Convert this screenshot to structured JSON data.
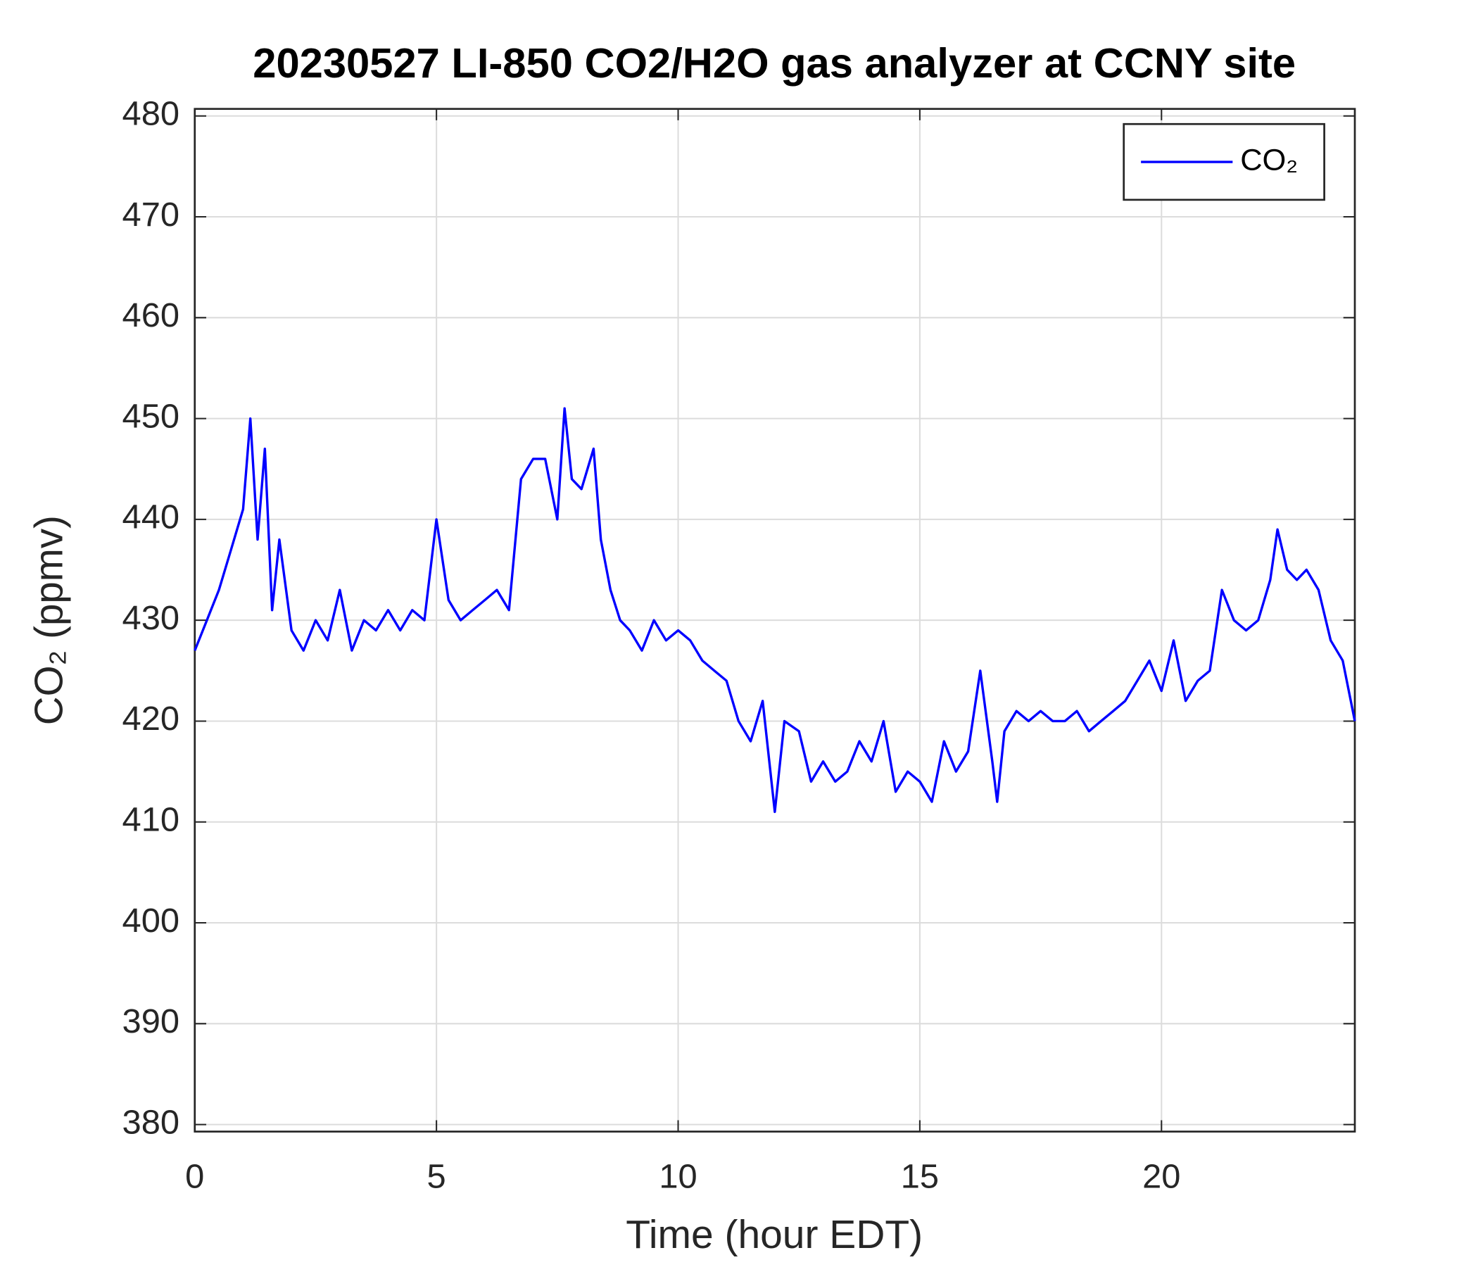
{
  "chart_data": {
    "type": "line",
    "title": "20230527 LI-850 CO2/H2O gas analyzer at CCNY site",
    "x_label": "Time (hour EDT)",
    "y_label": "CO₂ (ppmv)",
    "xlim": [
      0,
      24
    ],
    "xticks": [
      0,
      5,
      10,
      15,
      20
    ],
    "ylim": [
      379.3,
      480.7
    ],
    "yticks": [
      380,
      390,
      400,
      410,
      420,
      430,
      440,
      450,
      460,
      470,
      480
    ],
    "grid": true,
    "legend": "upper right",
    "x": [
      0,
      0.25,
      0.5,
      0.75,
      1.0,
      1.15,
      1.3,
      1.45,
      1.6,
      1.75,
      2.0,
      2.25,
      2.5,
      2.75,
      3.0,
      3.25,
      3.5,
      3.75,
      4.0,
      4.25,
      4.5,
      4.75,
      5.0,
      5.25,
      5.5,
      5.75,
      6.0,
      6.25,
      6.5,
      6.75,
      7.0,
      7.25,
      7.5,
      7.65,
      7.8,
      8.0,
      8.25,
      8.4,
      8.6,
      8.8,
      9.0,
      9.25,
      9.5,
      9.75,
      10.0,
      10.25,
      10.5,
      10.75,
      11.0,
      11.25,
      11.5,
      11.75,
      12.0,
      12.2,
      12.5,
      12.75,
      13.0,
      13.25,
      13.5,
      13.75,
      14.0,
      14.25,
      14.5,
      14.75,
      15.0,
      15.25,
      15.5,
      15.75,
      16.0,
      16.25,
      16.5,
      16.6,
      16.75,
      17.0,
      17.25,
      17.5,
      17.75,
      18.0,
      18.25,
      18.5,
      18.75,
      19.0,
      19.25,
      19.5,
      19.75,
      20.0,
      20.25,
      20.5,
      20.75,
      21.0,
      21.25,
      21.5,
      21.75,
      22.0,
      22.25,
      22.4,
      22.6,
      22.8,
      23.0,
      23.25,
      23.5,
      23.75,
      24.0
    ],
    "series": [
      {
        "name": "CO₂",
        "color": "#0000ff",
        "values": [
          427,
          430,
          433,
          437,
          441,
          450,
          438,
          447,
          431,
          438,
          429,
          427,
          430,
          428,
          433,
          427,
          430,
          429,
          431,
          429,
          431,
          430,
          440,
          432,
          430,
          431,
          432,
          433,
          431,
          444,
          446,
          446,
          440,
          451,
          444,
          443,
          447,
          438,
          433,
          430,
          429,
          427,
          430,
          428,
          429,
          428,
          426,
          425,
          424,
          420,
          418,
          422,
          411,
          420,
          419,
          414,
          416,
          414,
          415,
          418,
          416,
          420,
          413,
          415,
          414,
          412,
          418,
          415,
          417,
          425,
          416,
          412,
          419,
          421,
          420,
          421,
          420,
          420,
          421,
          419,
          420,
          421,
          422,
          424,
          426,
          423,
          428,
          422,
          424,
          425,
          433,
          430,
          429,
          430,
          434,
          439,
          435,
          434,
          435,
          433,
          428,
          426,
          420
        ]
      }
    ]
  }
}
